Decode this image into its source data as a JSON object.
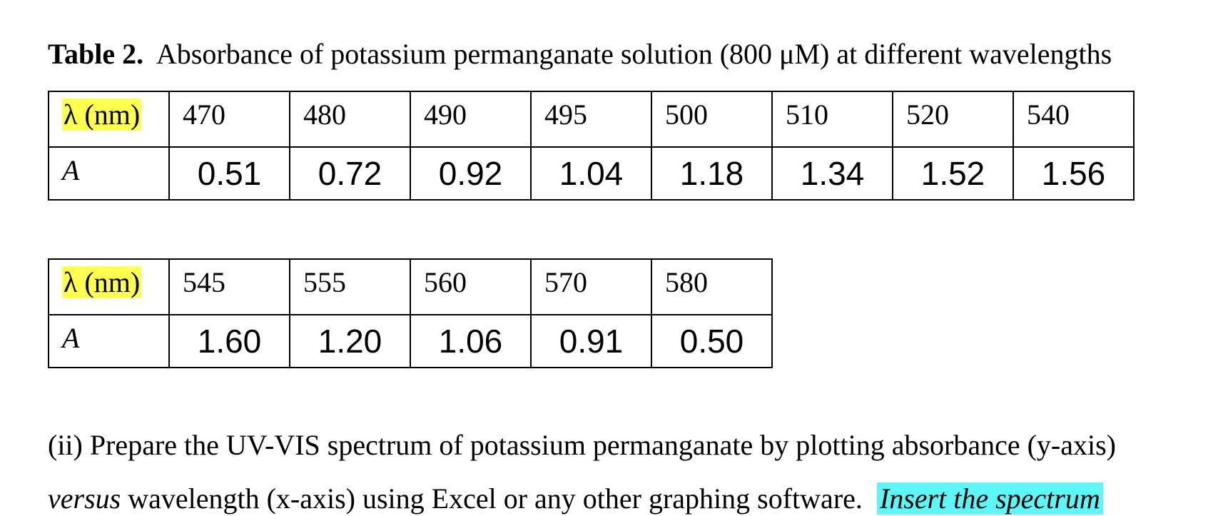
{
  "caption": {
    "label": "Table 2.",
    "text": "Absorbance of potassium permanganate solution (800 μM) at different wavelengths"
  },
  "tables": [
    {
      "header_label": "λ (nm)",
      "value_label": "A",
      "wavelengths": [
        "470",
        "480",
        "490",
        "495",
        "500",
        "510",
        "520",
        "540"
      ],
      "absorbances": [
        "0.51",
        "0.72",
        "0.92",
        "1.04",
        "1.18",
        "1.34",
        "1.52",
        "1.56"
      ]
    },
    {
      "header_label": "λ (nm)",
      "value_label": "A",
      "wavelengths": [
        "545",
        "555",
        "560",
        "570",
        "580"
      ],
      "absorbances": [
        "1.60",
        "1.20",
        "1.06",
        "0.91",
        "0.50"
      ]
    }
  ],
  "question": {
    "line1": "(ii) Prepare the UV-VIS spectrum of potassium permanganate by plotting absorbance (y-axis)",
    "line2_italic": "versus",
    "line2_text": " wavelength (x-axis) using Excel or any other graphing software.  ",
    "line2_highlight": "Insert the spectrum"
  },
  "colors": {
    "header_highlight": "#ffff4f",
    "instruction_highlight": "#5ef6f6"
  }
}
